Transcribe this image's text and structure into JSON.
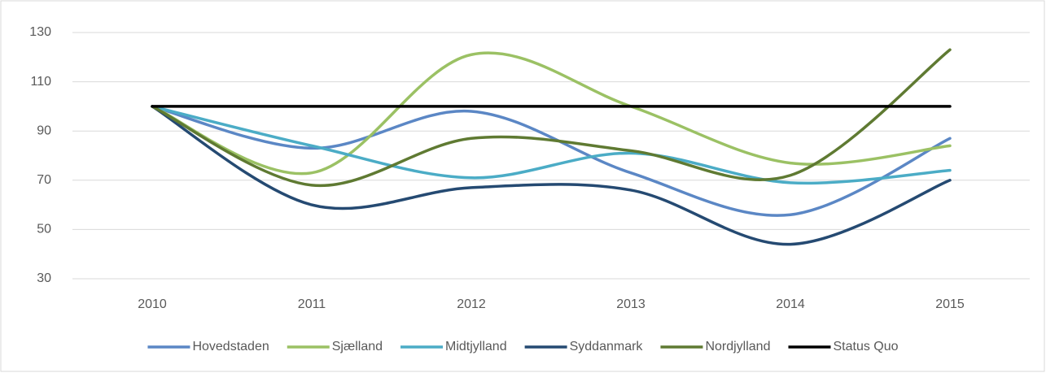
{
  "chart_data": {
    "type": "line",
    "categories": [
      "2010",
      "2011",
      "2012",
      "2013",
      "2014",
      "2015"
    ],
    "series": [
      {
        "name": "Hovedstaden",
        "color": "#5b87c5",
        "values": [
          100,
          83,
          98,
          73,
          56,
          87
        ]
      },
      {
        "name": "Sjælland",
        "color": "#9bc164",
        "values": [
          100,
          73,
          121,
          100,
          77,
          84
        ]
      },
      {
        "name": "Midtjylland",
        "color": "#4bacc6",
        "values": [
          100,
          84,
          71,
          81,
          69,
          74
        ]
      },
      {
        "name": "Syddanmark",
        "color": "#254a72",
        "values": [
          100,
          60,
          67,
          66,
          44,
          70
        ]
      },
      {
        "name": "Nordjylland",
        "color": "#5f7a32",
        "values": [
          100,
          68,
          87,
          82,
          72,
          123
        ]
      },
      {
        "name": "Status Quo",
        "color": "#000000",
        "values": [
          100,
          100,
          100,
          100,
          100,
          100
        ]
      }
    ],
    "ylim": [
      30,
      130
    ],
    "yticks": [
      30,
      50,
      70,
      90,
      110,
      130
    ],
    "grid": true,
    "smooth": true,
    "legend": "bottom"
  }
}
